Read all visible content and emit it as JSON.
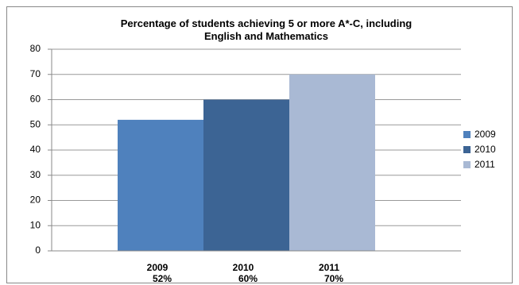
{
  "chart_data": {
    "type": "bar",
    "title": "Percentage of students achieving 5 or more A*-C, including\nEnglish and Mathematics",
    "categories": [
      "2009",
      "2010",
      "2011"
    ],
    "values": [
      52,
      60,
      70
    ],
    "value_labels": [
      "52%",
      "60%",
      "70%"
    ],
    "colors": [
      "#4f81bd",
      "#3c6494",
      "#a9b9d4"
    ],
    "ylim": [
      0,
      80
    ],
    "yticks": [
      0,
      10,
      20,
      30,
      40,
      50,
      60,
      70,
      80
    ],
    "grid": true,
    "legend": "right"
  }
}
